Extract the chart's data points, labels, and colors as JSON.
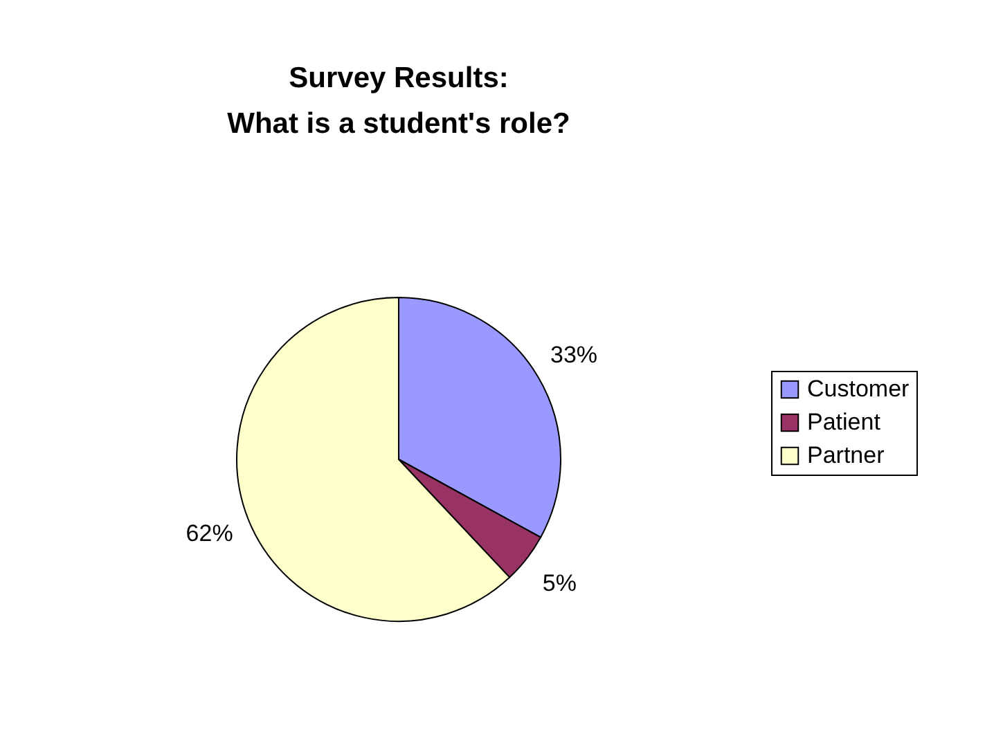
{
  "chart_data": {
    "type": "pie",
    "title": "Survey Results:\nWhat is a student's role?",
    "categories": [
      "Customer",
      "Patient",
      "Partner"
    ],
    "values": [
      33,
      5,
      62
    ],
    "colors": [
      "#9999ff",
      "#993366",
      "#ffffcc"
    ],
    "value_labels": [
      "33%",
      "5%",
      "62%"
    ],
    "legend": "right"
  }
}
